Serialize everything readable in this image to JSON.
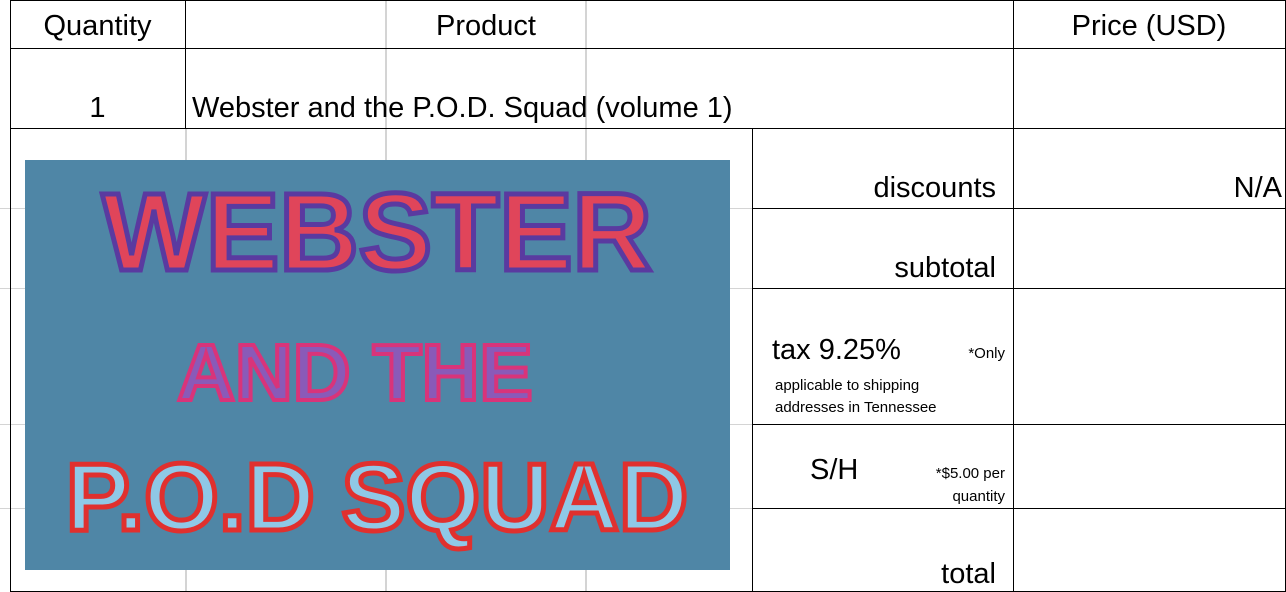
{
  "table": {
    "header": [
      "Quantity",
      "Product",
      "Price (USD)"
    ],
    "item": {
      "quantity": 1,
      "product": "Webster and the P.O.D. Squad (volume 1)"
    },
    "summary": [
      {
        "label": "discounts",
        "value": "N/A"
      },
      {
        "label": "subtotal"
      },
      {
        "label": "tax 9.25%",
        "note": [
          "*Only",
          "applicable to shipping",
          "addresses in Tennessee"
        ]
      },
      {
        "label": "S/H",
        "note": [
          "*$5.00 per",
          "quantity"
        ]
      },
      {
        "label": "total"
      }
    ]
  },
  "image": {
    "lines": [
      "WEBSTER",
      "AND THE",
      "P.O.D SQUAD"
    ]
  }
}
